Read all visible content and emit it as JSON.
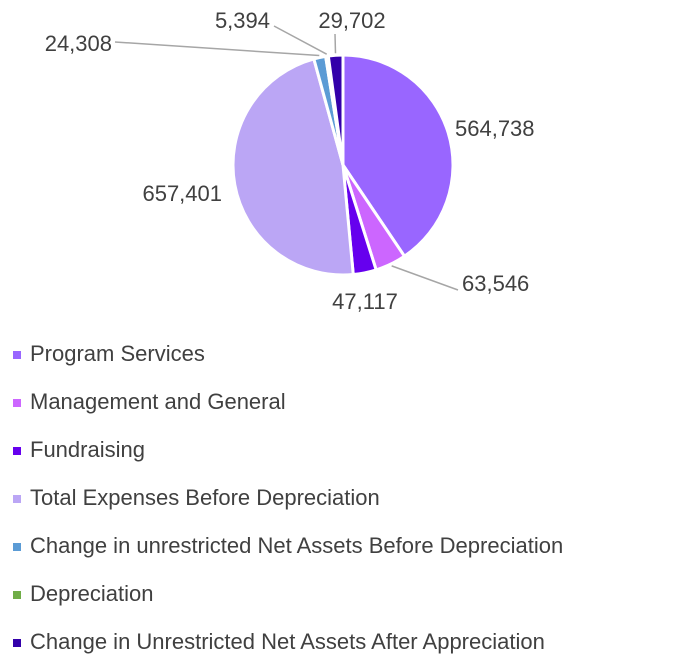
{
  "chart_data": {
    "type": "pie",
    "categories": [
      "Program Services",
      "Management and General",
      "Fundraising",
      "Total Expenses Before Depreciation",
      "Change in unrestricted Net Assets Before Depreciation",
      "Depreciation",
      "Change in Unrestricted Net Assets After Appreciation"
    ],
    "values": [
      564738,
      63546,
      47117,
      657401,
      24308,
      5394,
      29702
    ],
    "value_labels": [
      "564,738",
      "63,546",
      "47,117",
      "657,401",
      "24,308",
      "5,394",
      "29,702"
    ],
    "colors": [
      "#9966ff",
      "#cc66ff",
      "#6600ee",
      "#bba6f5",
      "#5b9bd5",
      "#70ad47",
      "#3300aa"
    ],
    "legend": "bottom"
  }
}
